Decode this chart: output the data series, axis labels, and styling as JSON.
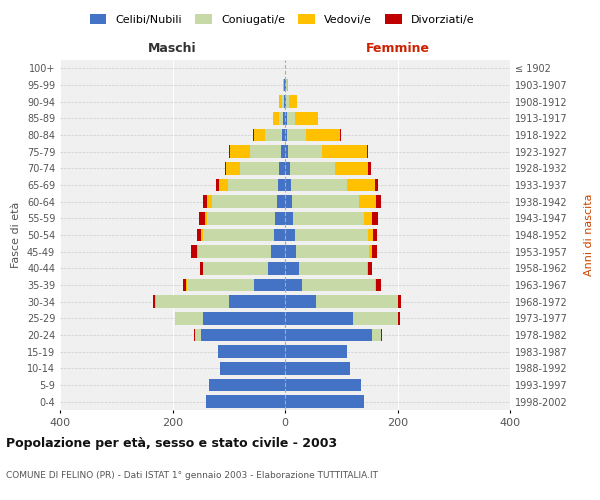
{
  "age_groups": [
    "0-4",
    "5-9",
    "10-14",
    "15-19",
    "20-24",
    "25-29",
    "30-34",
    "35-39",
    "40-44",
    "45-49",
    "50-54",
    "55-59",
    "60-64",
    "65-69",
    "70-74",
    "75-79",
    "80-84",
    "85-89",
    "90-94",
    "95-99",
    "100+"
  ],
  "birth_years": [
    "1998-2002",
    "1993-1997",
    "1988-1992",
    "1983-1987",
    "1978-1982",
    "1973-1977",
    "1968-1972",
    "1963-1967",
    "1958-1962",
    "1953-1957",
    "1948-1952",
    "1943-1947",
    "1938-1942",
    "1933-1937",
    "1928-1932",
    "1923-1927",
    "1918-1922",
    "1913-1917",
    "1908-1912",
    "1903-1907",
    "≤ 1902"
  ],
  "male": {
    "celibi": [
      140,
      135,
      115,
      120,
      150,
      145,
      100,
      55,
      30,
      25,
      20,
      18,
      15,
      12,
      10,
      8,
      5,
      3,
      2,
      1,
      0
    ],
    "coniugati": [
      0,
      0,
      0,
      0,
      10,
      50,
      130,
      120,
      115,
      130,
      125,
      120,
      115,
      90,
      70,
      55,
      30,
      8,
      4,
      1,
      0
    ],
    "vedovi": [
      0,
      0,
      0,
      0,
      0,
      0,
      1,
      1,
      1,
      2,
      4,
      5,
      8,
      15,
      25,
      35,
      20,
      10,
      5,
      1,
      0
    ],
    "divorziati": [
      0,
      0,
      0,
      0,
      1,
      1,
      4,
      5,
      5,
      10,
      8,
      10,
      8,
      5,
      2,
      2,
      2,
      0,
      0,
      0,
      0
    ]
  },
  "female": {
    "nubili": [
      140,
      135,
      115,
      110,
      155,
      120,
      55,
      30,
      25,
      20,
      18,
      15,
      12,
      10,
      8,
      5,
      3,
      3,
      2,
      1,
      0
    ],
    "coniugate": [
      0,
      0,
      0,
      0,
      15,
      80,
      145,
      130,
      120,
      130,
      130,
      125,
      120,
      100,
      80,
      60,
      35,
      15,
      5,
      2,
      0
    ],
    "vedove": [
      0,
      0,
      0,
      0,
      1,
      1,
      1,
      2,
      2,
      5,
      8,
      15,
      30,
      50,
      60,
      80,
      60,
      40,
      15,
      3,
      0
    ],
    "divorziate": [
      0,
      0,
      0,
      0,
      1,
      3,
      5,
      8,
      8,
      8,
      8,
      10,
      8,
      5,
      5,
      3,
      2,
      0,
      0,
      0,
      0
    ]
  },
  "colors": {
    "celibi": "#4472c4",
    "coniugati": "#c8d9a8",
    "vedovi": "#ffc000",
    "divorziati": "#c00000"
  },
  "xlim": 400,
  "title": "Popolazione per età, sesso e stato civile - 2003",
  "subtitle": "COMUNE DI FELINO (PR) - Dati ISTAT 1° gennaio 2003 - Elaborazione TUTTITALIA.IT",
  "ylabel_left": "Fasce di età",
  "ylabel_right": "Anni di nascita",
  "xlabel_left": "Maschi",
  "xlabel_right": "Femmine",
  "bg_color": "#f0f0f0"
}
